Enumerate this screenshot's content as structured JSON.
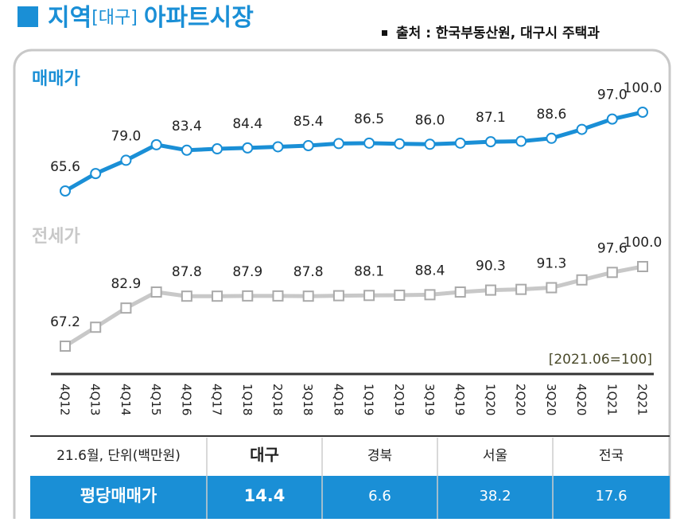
{
  "chart_data": {
    "type": "line",
    "title_main": "지역",
    "title_region": "[대구]",
    "title_rest": "아파트시장",
    "source": "출처 : 한국부동산원, 대구시 주택과",
    "note": "[2021.06=100]",
    "categories": [
      "4Q12",
      "4Q13",
      "4Q14",
      "4Q15",
      "4Q16",
      "4Q17",
      "1Q18",
      "2Q18",
      "3Q18",
      "4Q18",
      "1Q19",
      "2Q19",
      "3Q19",
      "4Q19",
      "1Q20",
      "2Q20",
      "3Q20",
      "4Q20",
      "1Q21",
      "2Q21"
    ],
    "series": [
      {
        "name": "매매가",
        "color": "#1a8fd6",
        "marker": "circle",
        "values": [
          65.6,
          73.2,
          79.0,
          85.8,
          83.4,
          84.0,
          84.4,
          84.9,
          85.4,
          86.3,
          86.5,
          86.2,
          86.0,
          86.5,
          87.1,
          87.3,
          88.6,
          92.5,
          97.0,
          100.0
        ],
        "value_labels": [
          "65.6",
          null,
          "79.0",
          null,
          "83.4",
          null,
          "84.4",
          null,
          "85.4",
          null,
          "86.5",
          null,
          "86.0",
          null,
          "87.1",
          null,
          "88.6",
          null,
          "97.0",
          "100.0"
        ]
      },
      {
        "name": "전세가",
        "color": "#c8c8c8",
        "marker": "square",
        "values": [
          67.2,
          75.0,
          82.9,
          89.5,
          87.8,
          87.8,
          87.9,
          87.9,
          87.8,
          88.0,
          88.1,
          88.2,
          88.4,
          89.5,
          90.3,
          90.6,
          91.3,
          94.5,
          97.6,
          100.0
        ],
        "value_labels": [
          "67.2",
          null,
          "82.9",
          null,
          "87.8",
          null,
          "87.9",
          null,
          "87.8",
          null,
          "88.1",
          null,
          "88.4",
          null,
          "90.3",
          null,
          "91.3",
          null,
          "97.6",
          "100.0"
        ]
      }
    ]
  },
  "table": {
    "header": [
      "21.6월, 단위(백만원)",
      "대구",
      "경북",
      "서울",
      "전국"
    ],
    "rows": [
      [
        "평당매매가",
        "14.4",
        "6.6",
        "38.2",
        "17.6"
      ]
    ]
  }
}
